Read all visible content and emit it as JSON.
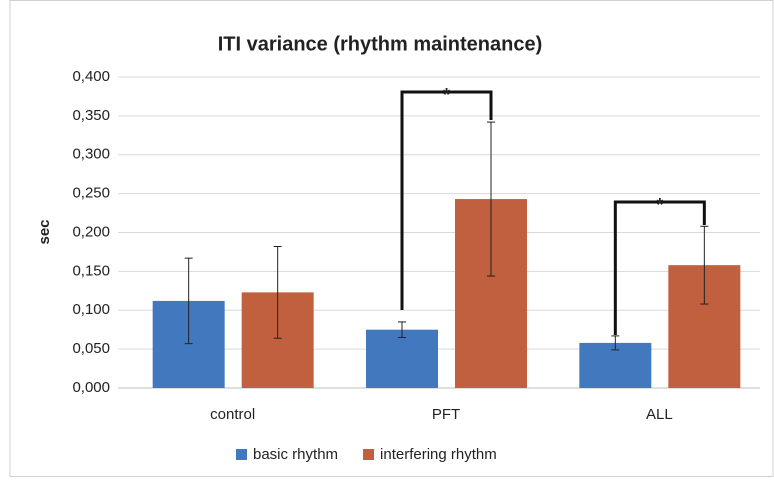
{
  "chart_data": {
    "type": "bar",
    "title": "ITI variance (rhythm maintenance)",
    "y_label": "sec",
    "categories": [
      "control",
      "PFT",
      "ALL"
    ],
    "series": [
      {
        "name": "basic rhythm",
        "color": "#4279be",
        "values": [
          0.112,
          0.075,
          0.058
        ],
        "errors": [
          0.055,
          0.01,
          0.009
        ]
      },
      {
        "name": "interfering rhythm",
        "color": "#c0603e",
        "values": [
          0.123,
          0.243,
          0.158
        ],
        "errors": [
          0.059,
          0.099,
          0.05
        ]
      }
    ],
    "ylim": [
      0,
      0.4
    ],
    "yticks": [
      {
        "value": 0,
        "label": "0,000"
      },
      {
        "value": 0.05,
        "label": "0,050"
      },
      {
        "value": 0.1,
        "label": "0,100"
      },
      {
        "value": 0.15,
        "label": "0,150"
      },
      {
        "value": 0.2,
        "label": "0,200"
      },
      {
        "value": 0.25,
        "label": "0,250"
      },
      {
        "value": 0.3,
        "label": "0,300"
      },
      {
        "value": 0.35,
        "label": "0,350"
      },
      {
        "value": 0.4,
        "label": "0,400"
      }
    ],
    "grid": true,
    "legend": "bottom",
    "annotations": [
      "*",
      "*"
    ]
  }
}
